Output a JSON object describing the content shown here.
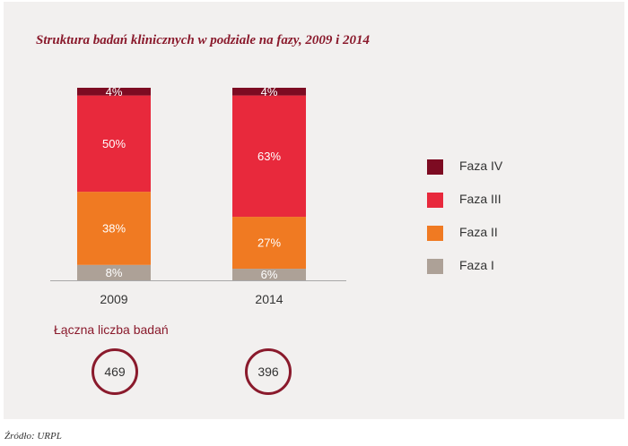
{
  "colors": {
    "faza_iv": "#7d0b22",
    "faza_iii": "#e8293c",
    "faza_ii": "#f07a22",
    "faza_i": "#ada197",
    "accent": "#8a1a2c"
  },
  "chart_data": {
    "type": "bar",
    "stacked": true,
    "title": "Struktura badań klinicznych w podziale na fazy, 2009 i 2014",
    "categories": [
      "2009",
      "2014"
    ],
    "ylim": [
      0,
      100
    ],
    "unit": "%",
    "legend_position": "right",
    "grid": false,
    "series": [
      {
        "name": "Faza I",
        "values": [
          8,
          6
        ],
        "labels": [
          "8%",
          "6%"
        ],
        "color": "#ada197"
      },
      {
        "name": "Faza II",
        "values": [
          38,
          27
        ],
        "labels": [
          "38%",
          "27%"
        ],
        "color": "#f07a22"
      },
      {
        "name": "Faza III",
        "values": [
          50,
          63
        ],
        "labels": [
          "50%",
          "63%"
        ],
        "color": "#e8293c"
      },
      {
        "name": "Faza IV",
        "values": [
          4,
          4
        ],
        "labels": [
          "4%",
          "4%"
        ],
        "color": "#7d0b22"
      }
    ]
  },
  "legend": [
    {
      "label": "Faza IV",
      "color": "#7d0b22"
    },
    {
      "label": "Faza III",
      "color": "#e8293c"
    },
    {
      "label": "Faza II",
      "color": "#f07a22"
    },
    {
      "label": "Faza I",
      "color": "#ada197"
    }
  ],
  "totals": {
    "label": "Łączna liczba badań",
    "values": [
      "469",
      "396"
    ]
  },
  "source": "Źródło: URPL"
}
